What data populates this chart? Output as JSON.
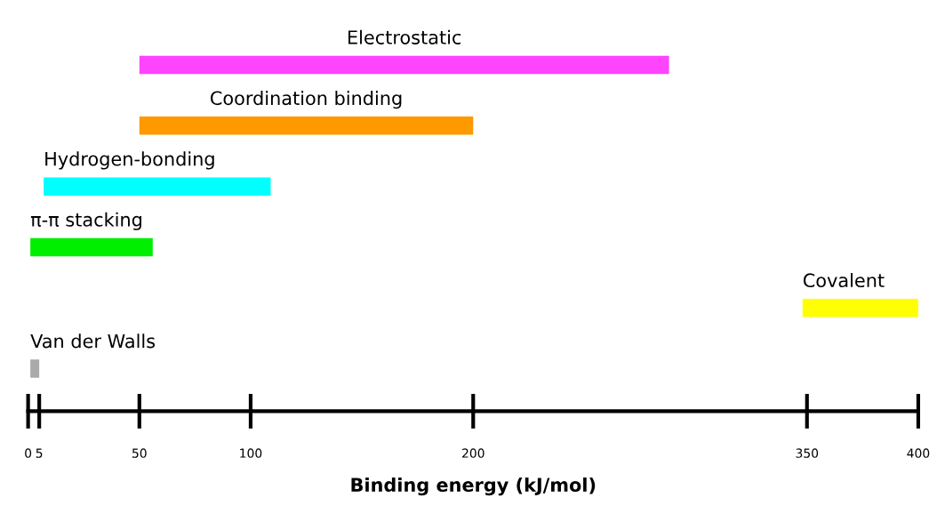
{
  "chart_data": {
    "type": "bar",
    "orientation": "horizontal",
    "xlabel": "Binding energy (kJ/mol)",
    "categories": [
      "Electrostatic",
      "Coordination binding",
      "Hydrogen-bonding",
      "π-π stacking",
      "Covalent",
      "Van der Walls"
    ],
    "base": [
      50,
      50,
      7,
      1,
      348,
      1
    ],
    "values": [
      238,
      150,
      102,
      55,
      52,
      4
    ],
    "colors": [
      "#ff44ff",
      "#ff9900",
      "#00ffff",
      "#00ee00",
      "#ffff00",
      "#aaaaaa"
    ],
    "xlim": [
      0,
      400
    ],
    "xticks": [
      0,
      5,
      50,
      100,
      200,
      350,
      400
    ],
    "tick_labels": "x",
    "grid": false
  }
}
